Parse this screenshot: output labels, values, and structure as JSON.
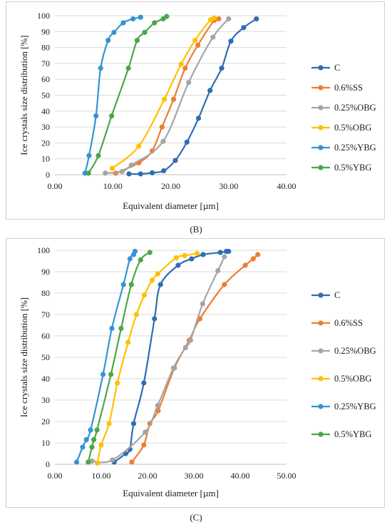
{
  "panels": [
    {
      "id": "B",
      "label": "(B)",
      "chart_data": {
        "type": "line",
        "xlabel": "Equivalent diameter [µm]",
        "ylabel": "Ice crystals size distribution [%]",
        "xlim": [
          0,
          40
        ],
        "ylim": [
          0,
          100
        ],
        "x_ticks": [
          "0.00",
          "10.00",
          "20.00",
          "30.00",
          "40.00"
        ],
        "y_ticks": [
          "0",
          "10",
          "20",
          "30",
          "40",
          "50",
          "60",
          "70",
          "80",
          "90",
          "100"
        ],
        "grid": true,
        "legend_position": "right",
        "series": [
          {
            "name": "C",
            "color": "#2e6db4",
            "x": [
              12.8,
              14.8,
              16.8,
              18.8,
              20.8,
              22.8,
              24.8,
              26.8,
              28.8,
              30.4,
              32.6,
              34.8
            ],
            "y": [
              0.5,
              0.5,
              1.2,
              2.5,
              9,
              20.5,
              35.5,
              53,
              67,
              84,
              92.5,
              98
            ]
          },
          {
            "name": "0.6%SS",
            "color": "#ed7d31",
            "x": [
              10.5,
              14.5,
              16.8,
              18.5,
              20.5,
              22.5,
              24.7,
              27.5,
              28.3
            ],
            "y": [
              1,
              7.5,
              15,
              30,
              47.5,
              67,
              81.5,
              97,
              98
            ]
          },
          {
            "name": "0.25%OBG",
            "color": "#a5a5a5",
            "x": [
              8.7,
              11.6,
              13.2,
              18.7,
              23.1,
              27.3,
              30
            ],
            "y": [
              1,
              2,
              6,
              21,
              58,
              86.5,
              98
            ]
          },
          {
            "name": "0.5%OBG",
            "color": "#ffc000",
            "x": [
              9.9,
              14.5,
              18.9,
              21.8,
              24.2,
              26.9,
              27.5
            ],
            "y": [
              4,
              18,
              47.5,
              69.5,
              84.5,
              97.5,
              98.5
            ]
          },
          {
            "name": "0.25%YBG",
            "color": "#3494d4",
            "x": [
              5.2,
              5.9,
              7.1,
              7.9,
              9.2,
              10.2,
              11.8,
              13.5,
              14.8
            ],
            "y": [
              1,
              12,
              37,
              67,
              84.5,
              89.5,
              95.5,
              98,
              99
            ]
          },
          {
            "name": "0.5%YBG",
            "color": "#4aa64a",
            "x": [
              5.8,
              7.5,
              9.8,
              12.7,
              14.2,
              15.5,
              17.2,
              18.7,
              19.3
            ],
            "y": [
              1,
              12,
              37,
              67,
              84.5,
              89.5,
              95.5,
              98,
              99.5
            ]
          }
        ]
      }
    },
    {
      "id": "C",
      "label": "(C)",
      "chart_data": {
        "type": "line",
        "xlabel": "Equivalent diameter [µm]",
        "ylabel": "Ice crystals size distribution [%]",
        "xlim": [
          0,
          50
        ],
        "ylim": [
          0,
          100
        ],
        "x_ticks": [
          "0.00",
          "10.00",
          "20.00",
          "30.00",
          "40.00",
          "50.00"
        ],
        "y_ticks": [
          "0",
          "10",
          "20",
          "30",
          "40",
          "50",
          "60",
          "70",
          "80",
          "90",
          "100"
        ],
        "grid": true,
        "legend_position": "right",
        "series": [
          {
            "name": "C",
            "color": "#2e6db4",
            "x": [
              12.8,
              15.3,
              16.2,
              17,
              19.2,
              21.5,
              22.8,
              26.6,
              29.5,
              32,
              35.7,
              37,
              37.5
            ],
            "y": [
              1,
              5,
              7,
              19,
              38,
              68,
              84,
              93,
              96,
              98,
              99,
              99.5,
              99.5
            ]
          },
          {
            "name": "0.6%SS",
            "color": "#ed7d31",
            "x": [
              16.6,
              19.2,
              20.5,
              22.3,
              25.8,
              29,
              31.3,
              36.6,
              41.1,
              42.8,
              43.8
            ],
            "y": [
              1,
              9,
              19,
              25,
              45,
              58,
              68,
              84,
              93,
              96,
              98
            ]
          },
          {
            "name": "0.25%OBG",
            "color": "#a5a5a5",
            "x": [
              8,
              12.4,
              19.5,
              22.2,
              25.6,
              28.2,
              29.3,
              31.9,
              35.2,
              36.6
            ],
            "y": [
              1.5,
              2,
              15,
              27.5,
              45,
              54.5,
              58,
              75,
              90.5,
              97
            ]
          },
          {
            "name": "0.5%OBG",
            "color": "#ffc000",
            "x": [
              9.2,
              10,
              11.7,
              13.5,
              15.8,
              17.6,
              19.3,
              21,
              22.2,
              26.2,
              28,
              30.7
            ],
            "y": [
              0.5,
              9,
              19,
              38,
              57,
              70,
              79,
              86,
              89,
              96.5,
              97.5,
              98.5
            ]
          },
          {
            "name": "0.25%YBG",
            "color": "#3494d4",
            "x": [
              4.7,
              6,
              6.8,
              7.7,
              10.4,
              12.3,
              14.8,
              16.2,
              17,
              17.3
            ],
            "y": [
              1,
              8,
              11.5,
              16,
              42,
              63.5,
              84,
              96,
              98,
              99.5
            ]
          },
          {
            "name": "0.5%YBG",
            "color": "#4aa64a",
            "x": [
              7.2,
              8,
              8.4,
              9.1,
              12.1,
              14.3,
              16.5,
              18.5,
              20.5
            ],
            "y": [
              1,
              8,
              11.5,
              16,
              42,
              63.5,
              84,
              95.5,
              99
            ]
          }
        ]
      }
    }
  ]
}
